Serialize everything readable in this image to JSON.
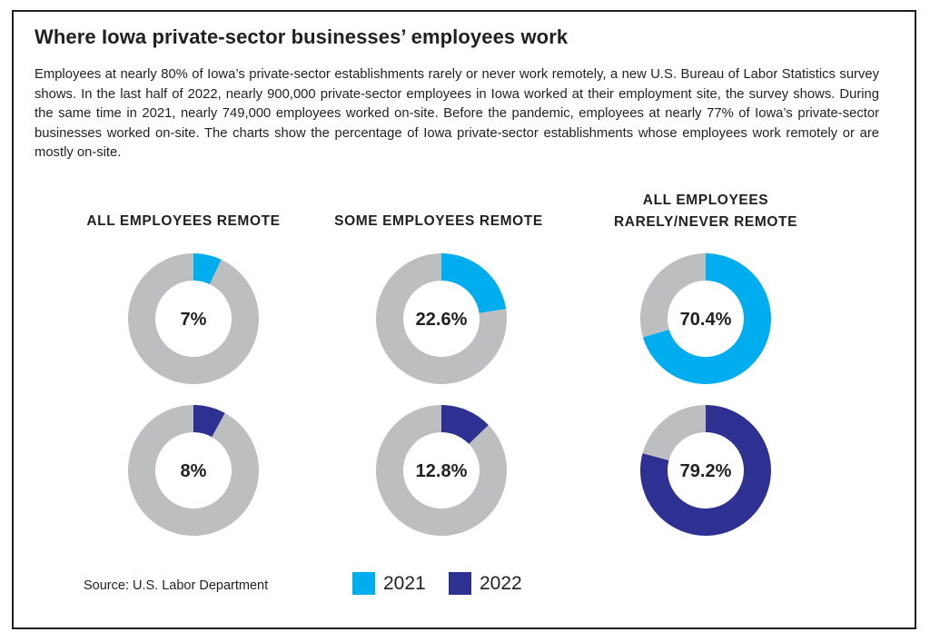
{
  "title": "Where Iowa private-sector businesses’ employees work",
  "intro": "Employees at nearly 80% of Iowa’s private-sector establishments rarely or never work remotely, a new U.S. Bureau of Labor Statistics survey shows. In the last half of 2022, nearly 900,000 private-sector employees in Iowa worked at their employment site, the survey shows. During the same time in 2021, nearly 749,000 employees worked on-site. Before the pandemic, employees at nearly 77% of Iowa’s private-sector businesses worked on-site. The charts show the percentage of Iowa private-sector establishments whose employees work remotely or are mostly on-site.",
  "columns": {
    "c0": "ALL EMPLOYEES REMOTE",
    "c1": "SOME EMPLOYEES REMOTE",
    "c2_line1": "ALL EMPLOYEES",
    "c2_line2": "RARELY/NEVER REMOTE"
  },
  "source": "Source: U.S. Labor Department",
  "legend": [
    {
      "label": "2021",
      "color": "#00aeef"
    },
    {
      "label": "2022",
      "color": "#2e3191"
    }
  ],
  "colors": {
    "remainder": "#bcbec0",
    "text": "#231f20"
  },
  "chart_data": {
    "type": "pie",
    "style": "donut",
    "categories": [
      "ALL EMPLOYEES REMOTE",
      "SOME EMPLOYEES REMOTE",
      "ALL EMPLOYEES RARELY/NEVER REMOTE"
    ],
    "series": [
      {
        "name": "2021",
        "values": [
          7,
          22.6,
          70.4
        ],
        "labels": [
          "7%",
          "22.6%",
          "70.4%"
        ]
      },
      {
        "name": "2022",
        "values": [
          8,
          12.8,
          79.2
        ],
        "labels": [
          "8%",
          "12.8%",
          "79.2%"
        ]
      }
    ]
  }
}
